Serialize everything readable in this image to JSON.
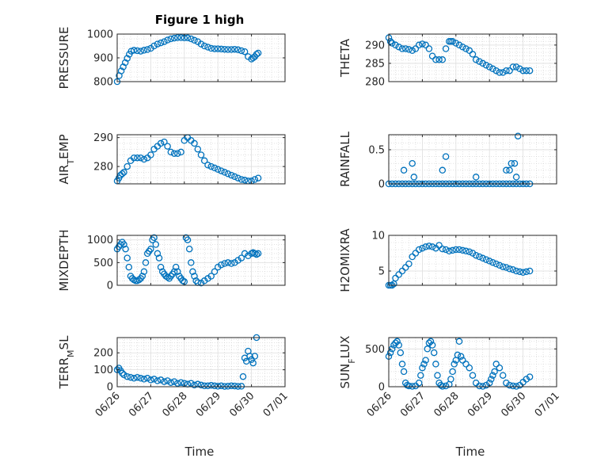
{
  "title": "Figure 1 high",
  "xlabel": "Time",
  "marker_color": "#0072BD",
  "chart_data": [
    {
      "type": "scatter",
      "ylabel": "PRESSURE",
      "ylabel_sub": "",
      "ylabel_tail": "",
      "ylim": [
        800,
        1000
      ],
      "yticks": [
        800,
        900,
        1000
      ],
      "x": [
        0,
        0.06,
        0.12,
        0.18,
        0.24,
        0.3,
        0.36,
        0.42,
        0.5,
        0.6,
        0.7,
        0.8,
        0.9,
        1,
        1.1,
        1.2,
        1.3,
        1.4,
        1.5,
        1.6,
        1.7,
        1.8,
        1.9,
        2,
        2.1,
        2.2,
        2.3,
        2.4,
        2.5,
        2.6,
        2.7,
        2.8,
        2.9,
        3,
        3.1,
        3.2,
        3.3,
        3.4,
        3.5,
        3.6,
        3.7,
        3.8,
        3.9,
        4,
        4.05,
        4.1,
        4.15,
        4.2
      ],
      "y": [
        800,
        825,
        845,
        862,
        880,
        898,
        915,
        928,
        932,
        930,
        928,
        932,
        935,
        940,
        950,
        958,
        963,
        968,
        975,
        980,
        983,
        985,
        985,
        984,
        984,
        980,
        974,
        968,
        958,
        950,
        945,
        940,
        938,
        938,
        937,
        936,
        935,
        935,
        936,
        934,
        930,
        926,
        905,
        895,
        900,
        905,
        915,
        920
      ]
    },
    {
      "type": "scatter",
      "ylabel": "THETA",
      "ylabel_sub": "",
      "ylabel_tail": "",
      "ylim": [
        280,
        293
      ],
      "yticks": [
        280,
        285,
        290
      ],
      "x": [
        0,
        0.05,
        0.1,
        0.2,
        0.3,
        0.4,
        0.5,
        0.6,
        0.7,
        0.8,
        0.9,
        1,
        1.1,
        1.2,
        1.3,
        1.4,
        1.5,
        1.6,
        1.7,
        1.8,
        1.85,
        1.9,
        2,
        2.1,
        2.2,
        2.3,
        2.4,
        2.5,
        2.6,
        2.7,
        2.8,
        2.9,
        3,
        3.1,
        3.2,
        3.3,
        3.4,
        3.5,
        3.6,
        3.7,
        3.8,
        3.9,
        4,
        4.1,
        4.2
      ],
      "y": [
        292,
        291,
        290.5,
        290,
        289.5,
        289,
        289,
        288.8,
        288.5,
        289,
        290,
        290.3,
        290,
        289,
        287,
        286,
        286,
        286,
        289,
        291,
        291,
        291,
        290.5,
        290,
        289.5,
        289,
        288.5,
        287.5,
        286,
        285.5,
        285,
        284.5,
        284,
        283.5,
        283,
        282.5,
        282.5,
        283,
        283,
        284,
        284,
        283.5,
        283,
        283,
        283
      ]
    },
    {
      "type": "scatter",
      "ylabel": "AIR",
      "ylabel_sub": "T",
      "ylabel_tail": "EMP",
      "ylim": [
        274,
        291
      ],
      "yticks": [
        280,
        290
      ],
      "x": [
        0,
        0.05,
        0.1,
        0.15,
        0.2,
        0.3,
        0.4,
        0.5,
        0.6,
        0.7,
        0.8,
        0.9,
        1,
        1.1,
        1.2,
        1.3,
        1.4,
        1.5,
        1.6,
        1.7,
        1.8,
        1.9,
        2,
        2.1,
        2.2,
        2.3,
        2.4,
        2.5,
        2.6,
        2.7,
        2.8,
        2.9,
        3,
        3.1,
        3.2,
        3.3,
        3.4,
        3.5,
        3.6,
        3.7,
        3.8,
        3.9,
        4,
        4.1,
        4.2
      ],
      "y": [
        275,
        276,
        277,
        277.5,
        278,
        280,
        282,
        283,
        283,
        283,
        282.5,
        283,
        284,
        286,
        287,
        288,
        288.5,
        287,
        285,
        284.5,
        284.5,
        285,
        289,
        290,
        289,
        288,
        286,
        284,
        282,
        280.5,
        280,
        279.5,
        279,
        278.5,
        278,
        277.5,
        277,
        276.5,
        276,
        275.5,
        275.3,
        275,
        275,
        275.5,
        276
      ]
    },
    {
      "type": "scatter",
      "ylabel": "RAINFALL",
      "ylabel_sub": "",
      "ylabel_tail": "",
      "ylim": [
        0,
        0.72
      ],
      "yticks": [
        0,
        0.5
      ],
      "x": [
        0,
        0.1,
        0.2,
        0.3,
        0.4,
        0.5,
        0.6,
        0.7,
        0.8,
        0.9,
        1,
        1.1,
        1.2,
        1.3,
        1.4,
        1.5,
        1.6,
        1.7,
        1.8,
        1.9,
        2,
        2.1,
        2.2,
        2.3,
        2.4,
        2.5,
        2.6,
        2.7,
        2.8,
        2.9,
        3,
        3.1,
        3.2,
        3.3,
        3.4,
        3.5,
        3.6,
        3.7,
        3.8,
        3.9,
        4,
        4.1,
        4.2,
        0.45,
        0.7,
        0.75,
        1.6,
        1.7,
        2.6,
        3.5,
        3.6,
        3.75,
        3.85,
        3.8,
        3.65
      ],
      "y": [
        0,
        0,
        0,
        0,
        0,
        0,
        0,
        0,
        0,
        0,
        0,
        0,
        0,
        0,
        0,
        0,
        0,
        0,
        0,
        0,
        0,
        0,
        0,
        0,
        0,
        0,
        0,
        0,
        0,
        0,
        0,
        0,
        0,
        0,
        0,
        0,
        0,
        0,
        0,
        0,
        0,
        0,
        0,
        0.2,
        0.3,
        0.1,
        0.2,
        0.4,
        0.1,
        0.2,
        0.2,
        0.3,
        0.7,
        0.1,
        0.3
      ]
    },
    {
      "type": "scatter",
      "ylabel": "MIXDEPTH",
      "ylabel_sub": "",
      "ylabel_tail": "",
      "ylim": [
        0,
        1100
      ],
      "yticks": [
        0,
        500,
        1000
      ],
      "x": [
        0,
        0.05,
        0.1,
        0.15,
        0.2,
        0.25,
        0.3,
        0.35,
        0.4,
        0.45,
        0.5,
        0.55,
        0.6,
        0.65,
        0.7,
        0.75,
        0.8,
        0.85,
        0.9,
        0.95,
        1,
        1.05,
        1.1,
        1.15,
        1.2,
        1.25,
        1.3,
        1.35,
        1.4,
        1.45,
        1.5,
        1.55,
        1.6,
        1.65,
        1.7,
        1.75,
        1.8,
        1.85,
        1.9,
        1.95,
        2,
        2.05,
        2.1,
        2.15,
        2.2,
        2.25,
        2.3,
        2.35,
        2.4,
        2.5,
        2.6,
        2.7,
        2.8,
        2.9,
        3,
        3.1,
        3.2,
        3.3,
        3.4,
        3.5,
        3.6,
        3.7,
        3.8,
        3.9,
        4,
        4.05,
        4.1,
        4.15,
        4.2
      ],
      "y": [
        800,
        850,
        900,
        950,
        900,
        800,
        600,
        400,
        200,
        150,
        120,
        100,
        100,
        120,
        150,
        200,
        300,
        500,
        700,
        750,
        800,
        1000,
        1050,
        900,
        700,
        600,
        400,
        300,
        250,
        200,
        180,
        150,
        200,
        250,
        300,
        400,
        300,
        200,
        150,
        100,
        80,
        1050,
        1000,
        800,
        500,
        300,
        200,
        100,
        60,
        50,
        100,
        150,
        200,
        300,
        400,
        450,
        480,
        500,
        480,
        500,
        550,
        600,
        700,
        650,
        700,
        720,
        700,
        680,
        700
      ]
    },
    {
      "type": "scatter",
      "ylabel": "H2OMIXRA",
      "ylabel_sub": "",
      "ylabel_tail": "",
      "ylim": [
        3,
        10
      ],
      "yticks": [
        5,
        10
      ],
      "x": [
        0,
        0.05,
        0.1,
        0.15,
        0.2,
        0.3,
        0.4,
        0.5,
        0.6,
        0.7,
        0.8,
        0.9,
        1,
        1.1,
        1.2,
        1.3,
        1.4,
        1.5,
        1.6,
        1.7,
        1.8,
        1.9,
        2,
        2.1,
        2.2,
        2.3,
        2.4,
        2.5,
        2.6,
        2.7,
        2.8,
        2.9,
        3,
        3.1,
        3.2,
        3.3,
        3.4,
        3.5,
        3.6,
        3.7,
        3.8,
        3.9,
        4,
        4.1,
        4.2
      ],
      "y": [
        3,
        3,
        3,
        3.2,
        4,
        4.5,
        5,
        5.5,
        6,
        7,
        7.5,
        8,
        8.2,
        8.4,
        8.5,
        8.4,
        8.2,
        8.6,
        8.1,
        8,
        7.8,
        7.9,
        8,
        8,
        7.9,
        7.8,
        7.7,
        7.5,
        7.2,
        7,
        6.8,
        6.6,
        6.4,
        6.2,
        6,
        5.8,
        5.6,
        5.5,
        5.3,
        5.2,
        5,
        4.9,
        4.8,
        4.9,
        5
      ]
    },
    {
      "type": "scatter",
      "ylabel": "TERR",
      "ylabel_sub": "M",
      "ylabel_tail": "SL",
      "ylim": [
        0,
        290
      ],
      "yticks": [
        0,
        100,
        200
      ],
      "x": [
        0,
        0.05,
        0.1,
        0.15,
        0.2,
        0.3,
        0.4,
        0.5,
        0.6,
        0.7,
        0.8,
        0.9,
        1,
        1.1,
        1.2,
        1.3,
        1.4,
        1.5,
        1.6,
        1.7,
        1.8,
        1.9,
        2,
        2.1,
        2.2,
        2.3,
        2.4,
        2.5,
        2.6,
        2.7,
        2.8,
        2.9,
        3,
        3.1,
        3.2,
        3.3,
        3.4,
        3.5,
        3.6,
        3.7,
        3.75,
        3.8,
        3.85,
        3.9,
        3.95,
        4,
        4.05,
        4.1,
        4.15
      ],
      "y": [
        100,
        110,
        95,
        80,
        70,
        60,
        55,
        50,
        55,
        50,
        45,
        50,
        40,
        45,
        35,
        40,
        30,
        35,
        25,
        30,
        20,
        25,
        20,
        15,
        20,
        10,
        15,
        10,
        5,
        5,
        8,
        5,
        3,
        5,
        2,
        3,
        5,
        4,
        2,
        3,
        60,
        170,
        150,
        210,
        180,
        160,
        140,
        180,
        290
      ]
    },
    {
      "type": "scatter",
      "ylabel": "SUN",
      "ylabel_sub": "F",
      "ylabel_tail": "LUX",
      "ylim": [
        0,
        650
      ],
      "yticks": [
        0,
        500
      ],
      "x": [
        0,
        0.05,
        0.1,
        0.15,
        0.2,
        0.25,
        0.3,
        0.35,
        0.4,
        0.45,
        0.5,
        0.55,
        0.6,
        0.7,
        0.8,
        0.9,
        0.95,
        1,
        1.05,
        1.1,
        1.15,
        1.2,
        1.25,
        1.3,
        1.35,
        1.4,
        1.45,
        1.5,
        1.55,
        1.6,
        1.7,
        1.8,
        1.85,
        1.9,
        1.95,
        2,
        2.05,
        2.1,
        2.15,
        2.2,
        2.3,
        2.4,
        2.5,
        2.6,
        2.7,
        2.8,
        2.9,
        3,
        3.05,
        3.1,
        3.15,
        3.2,
        3.3,
        3.4,
        3.5,
        3.6,
        3.7,
        3.8,
        3.9,
        4,
        4.1,
        4.2
      ],
      "y": [
        400,
        450,
        500,
        550,
        580,
        600,
        550,
        450,
        300,
        200,
        50,
        20,
        10,
        5,
        10,
        50,
        150,
        250,
        300,
        350,
        500,
        580,
        600,
        550,
        450,
        300,
        150,
        50,
        20,
        5,
        10,
        30,
        100,
        200,
        300,
        350,
        420,
        600,
        400,
        350,
        300,
        250,
        150,
        50,
        10,
        5,
        20,
        50,
        100,
        150,
        200,
        300,
        250,
        150,
        50,
        20,
        10,
        5,
        20,
        60,
        100,
        130
      ]
    }
  ],
  "xticks": [
    "06/26",
    "06/27",
    "06/28",
    "06/29",
    "06/30",
    "07/01"
  ]
}
